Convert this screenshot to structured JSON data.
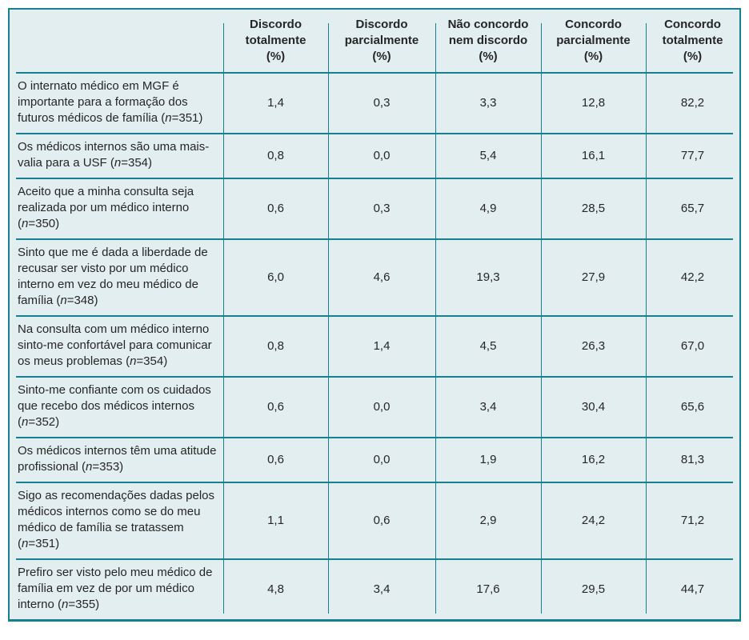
{
  "colors": {
    "border_teal": "#16808f",
    "cell_background": "#e3eef0",
    "text": "#262626",
    "page_background": "#ffffff"
  },
  "punctuation": {
    "open": "(",
    "equals": "=",
    "close": ")"
  },
  "n_symbol": "n",
  "table": {
    "columns": [
      {
        "label": "Discordo totalmente",
        "unit": "(%)"
      },
      {
        "label": "Discordo parcialmente",
        "unit": "(%)"
      },
      {
        "label": "Não concordo nem discordo",
        "unit": "(%)"
      },
      {
        "label": "Concordo parcialmente",
        "unit": "(%)"
      },
      {
        "label": "Concordo totalmente",
        "unit": "(%)"
      }
    ],
    "rows": [
      {
        "statement": "O internato médico em MGF é importante para a formação dos futuros médicos de família",
        "n": "351",
        "values": [
          "1,4",
          "0,3",
          "3,3",
          "12,8",
          "82,2"
        ]
      },
      {
        "statement": "Os médicos internos são uma mais-valia para a USF",
        "n": "354",
        "values": [
          "0,8",
          "0,0",
          "5,4",
          "16,1",
          "77,7"
        ]
      },
      {
        "statement": "Aceito que a minha consulta seja realizada por um médico interno",
        "n": "350",
        "values": [
          "0,6",
          "0,3",
          "4,9",
          "28,5",
          "65,7"
        ]
      },
      {
        "statement": "Sinto que me é dada a liberdade de recusar ser visto por um médico interno em vez do meu médico de família",
        "n": "348",
        "values": [
          "6,0",
          "4,6",
          "19,3",
          "27,9",
          "42,2"
        ]
      },
      {
        "statement": "Na consulta com um médico interno sinto-me confortável para comunicar os meus problemas",
        "n": "354",
        "values": [
          "0,8",
          "1,4",
          "4,5",
          "26,3",
          "67,0"
        ]
      },
      {
        "statement": "Sinto-me confiante com os cuidados que recebo dos médicos internos",
        "n": "352",
        "values": [
          "0,6",
          "0,0",
          "3,4",
          "30,4",
          "65,6"
        ]
      },
      {
        "statement": "Os médicos internos têm uma atitude profissional",
        "n": "353",
        "values": [
          "0,6",
          "0,0",
          "1,9",
          "16,2",
          "81,3"
        ]
      },
      {
        "statement": "Sigo as recomendações dadas pelos médicos internos como se do meu médico de família se tratassem",
        "n": "351",
        "values": [
          "1,1",
          "0,6",
          "2,9",
          "24,2",
          "71,2"
        ]
      },
      {
        "statement": "Prefiro ser visto pelo meu médico de família em vez de por um médico interno",
        "n": "355",
        "values": [
          "4,8",
          "3,4",
          "17,6",
          "29,5",
          "44,7"
        ]
      }
    ]
  },
  "chart_data": {
    "type": "table",
    "title": "",
    "categories": [
      "Discordo totalmente (%)",
      "Discordo parcialmente (%)",
      "Não concordo nem discordo (%)",
      "Concordo parcialmente (%)",
      "Concordo totalmente (%)"
    ],
    "series": [
      {
        "name": "O internato médico em MGF é importante para a formação dos futuros médicos de família (n=351)",
        "values": [
          1.4,
          0.3,
          3.3,
          12.8,
          82.2
        ]
      },
      {
        "name": "Os médicos internos são uma mais-valia para a USF (n=354)",
        "values": [
          0.8,
          0.0,
          5.4,
          16.1,
          77.7
        ]
      },
      {
        "name": "Aceito que a minha consulta seja realizada por um médico interno (n=350)",
        "values": [
          0.6,
          0.3,
          4.9,
          28.5,
          65.7
        ]
      },
      {
        "name": "Sinto que me é dada a liberdade de recusar ser visto por um médico interno em vez do meu médico de família (n=348)",
        "values": [
          6.0,
          4.6,
          19.3,
          27.9,
          42.2
        ]
      },
      {
        "name": "Na consulta com um médico interno sinto-me confortável para comunicar os meus problemas (n=354)",
        "values": [
          0.8,
          1.4,
          4.5,
          26.3,
          67.0
        ]
      },
      {
        "name": "Sinto-me confiante com os cuidados que recebo dos médicos internos (n=352)",
        "values": [
          0.6,
          0.0,
          3.4,
          30.4,
          65.6
        ]
      },
      {
        "name": "Os médicos internos têm uma atitude profissional (n=353)",
        "values": [
          0.6,
          0.0,
          1.9,
          16.2,
          81.3
        ]
      },
      {
        "name": "Sigo as recomendações dadas pelos médicos internos como se do meu médico de família se tratassem (n=351)",
        "values": [
          1.1,
          0.6,
          2.9,
          24.2,
          71.2
        ]
      },
      {
        "name": "Prefiro ser visto pelo meu médico de família em vez de por um médico interno (n=355)",
        "values": [
          4.8,
          3.4,
          17.6,
          29.5,
          44.7
        ]
      }
    ]
  }
}
